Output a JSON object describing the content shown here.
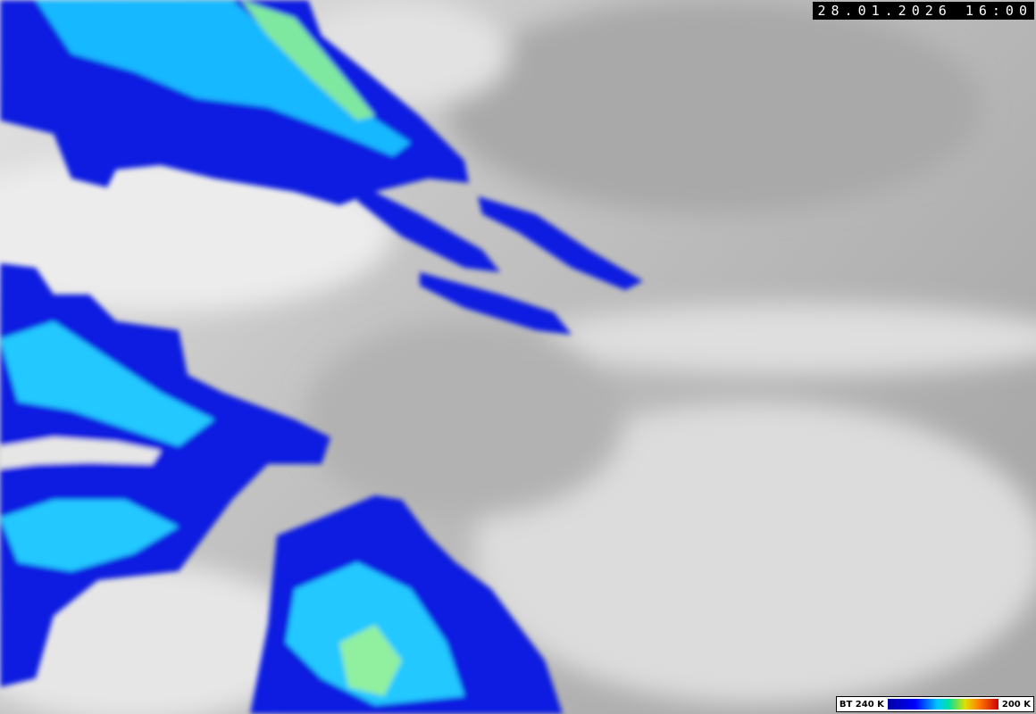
{
  "timestamp": "28.01.2026 16:00",
  "legend": {
    "low_label": "BT 240 K",
    "high_label": "200 K"
  }
}
